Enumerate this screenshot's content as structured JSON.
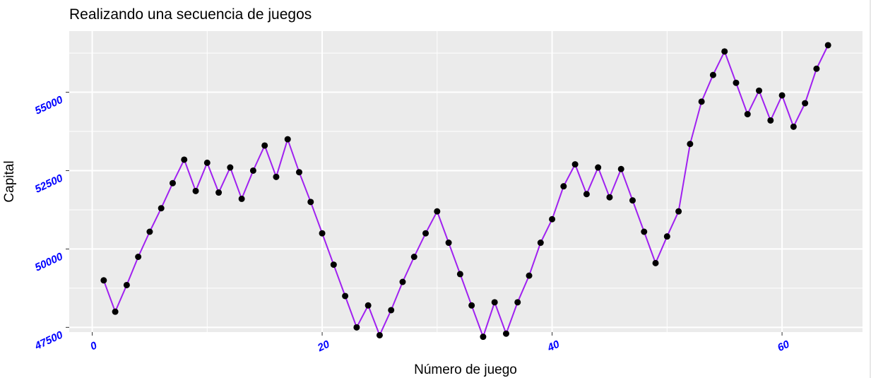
{
  "chart_data": {
    "type": "line",
    "title": "Realizando una secuencia de juegos",
    "xlabel": "Número de juego",
    "ylabel": "Capital",
    "xlim": [
      -2,
      67
    ],
    "ylim": [
      47350,
      56950
    ],
    "x_ticks": [
      0,
      20,
      40,
      60
    ],
    "x_tick_labels": [
      "0",
      "20",
      "40",
      "60"
    ],
    "y_ticks": [
      47500,
      50000,
      52500,
      55000
    ],
    "y_tick_labels": [
      "47500",
      "50000",
      "52500",
      "55000"
    ],
    "grid": true,
    "legend": "none",
    "series": [
      {
        "x": [
          1,
          2,
          3,
          4,
          5,
          6,
          7,
          8,
          9,
          10,
          11,
          12,
          13,
          14,
          15,
          16,
          17,
          18,
          19,
          20,
          21,
          22,
          23,
          24,
          25,
          26,
          27,
          28,
          29,
          30,
          31,
          32,
          33,
          34,
          35,
          36,
          37,
          38,
          39,
          40,
          41,
          42,
          43,
          44,
          45,
          46,
          47,
          48,
          49,
          50,
          51,
          52,
          53,
          54,
          55,
          56,
          57,
          58,
          59,
          60,
          61,
          62,
          63,
          64
        ],
        "values": [
          49000,
          48000,
          48850,
          49750,
          50550,
          51300,
          52100,
          52850,
          51850,
          52750,
          51800,
          52600,
          51600,
          52500,
          53300,
          52300,
          53500,
          52450,
          51500,
          50500,
          49500,
          48500,
          47500,
          48200,
          47250,
          48050,
          48950,
          49750,
          50500,
          51200,
          50200,
          49200,
          48200,
          47200,
          48300,
          47300,
          48300,
          49150,
          50200,
          50950,
          52000,
          52700,
          51750,
          52600,
          51650,
          52550,
          51550,
          50550,
          49550,
          50400,
          51200,
          53350,
          54700,
          55550,
          56300,
          55300,
          54300,
          55050,
          54100,
          54900,
          53900,
          54650,
          55750,
          56500
        ]
      }
    ],
    "colors": {
      "panel_background": "#ebebeb",
      "gridline": "#ffffff",
      "line": "#a020f0",
      "point": "#000000",
      "tick_label": "#0000ff"
    }
  }
}
